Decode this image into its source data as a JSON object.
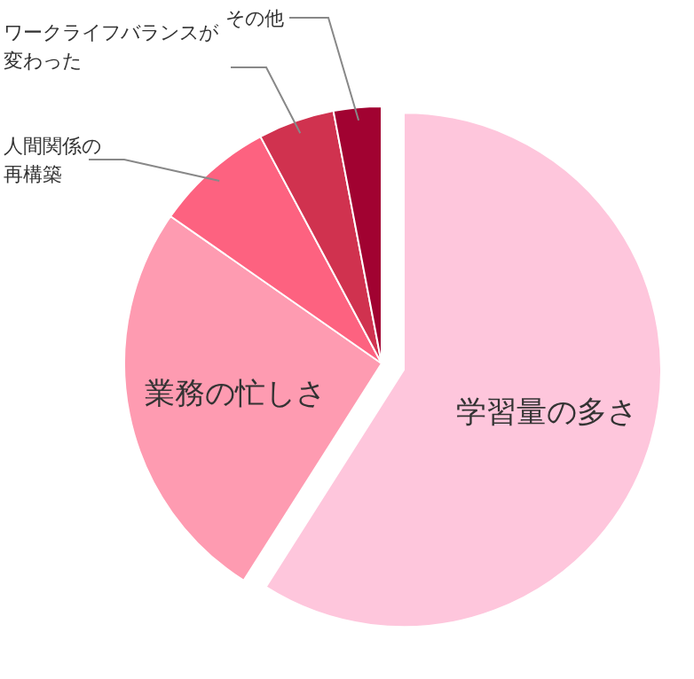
{
  "chart_data": {
    "type": "pie",
    "categories": [
      "学習量の多さ",
      "業務の忙しさ",
      "人間関係の再構築",
      "ワークライフバランスが変わった",
      "その他"
    ],
    "values": [
      59,
      25.7,
      7.5,
      4.8,
      3
    ],
    "colors": [
      "#fec6dc",
      "#fe9bb1",
      "#fd6280",
      "#d0324f",
      "#a10231"
    ]
  }
}
